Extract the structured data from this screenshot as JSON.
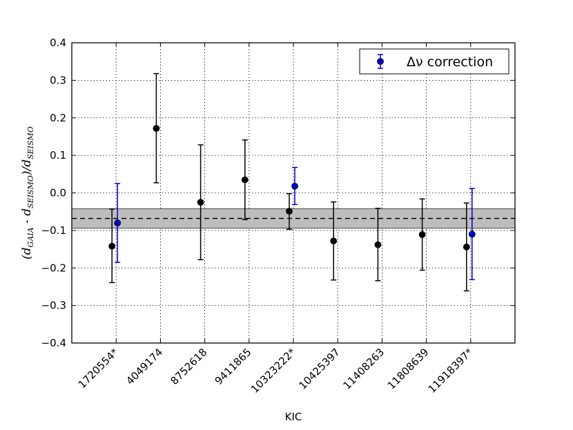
{
  "chart_data": {
    "type": "scatter",
    "xlabel": "KIC",
    "ylabel_parts": {
      "open": "(d",
      "gaia": "GAIA",
      "minus": " - d",
      "seismo1": "SEISMO",
      "mid": ")/d",
      "seismo2": "SEISMO"
    },
    "ylim": [
      -0.4,
      0.4
    ],
    "yticks": [
      "−0.4",
      "−0.3",
      "−0.2",
      "−0.1",
      "0.0",
      "0.1",
      "0.2",
      "0.3",
      "0.4"
    ],
    "ytick_values": [
      -0.4,
      -0.3,
      -0.2,
      -0.1,
      0.0,
      0.1,
      0.2,
      0.3,
      0.4
    ],
    "categories": [
      "1720554*",
      "4049174",
      "8752618",
      "9411865",
      "10323222*",
      "10425397",
      "11408263",
      "11808639",
      "11918397*"
    ],
    "grid": true,
    "reference_line": -0.068,
    "reference_band": [
      -0.094,
      -0.042
    ],
    "series": [
      {
        "color": "#000000",
        "points": [
          {
            "x": "1720554*",
            "y": -0.142,
            "err_lo": -0.239,
            "err_hi": -0.043
          },
          {
            "x": "4049174",
            "y": 0.172,
            "err_lo": 0.027,
            "err_hi": 0.318
          },
          {
            "x": "8752618",
            "y": -0.025,
            "err_lo": -0.178,
            "err_hi": 0.128
          },
          {
            "x": "9411865",
            "y": 0.035,
            "err_lo": -0.071,
            "err_hi": 0.141
          },
          {
            "x": "10323222*",
            "y": -0.049,
            "err_lo": -0.097,
            "err_hi": -0.002
          },
          {
            "x": "10425397",
            "y": -0.128,
            "err_lo": -0.232,
            "err_hi": -0.024
          },
          {
            "x": "11408263",
            "y": -0.138,
            "err_lo": -0.234,
            "err_hi": -0.041
          },
          {
            "x": "11808639",
            "y": -0.111,
            "err_lo": -0.206,
            "err_hi": -0.016
          },
          {
            "x": "11918397*",
            "y": -0.144,
            "err_lo": -0.261,
            "err_hi": -0.027
          }
        ]
      },
      {
        "name": "Δν correction",
        "color": "#0000cc",
        "points": [
          {
            "x": "1720554*",
            "y": -0.08,
            "err_lo": -0.185,
            "err_hi": 0.025
          },
          {
            "x": "10323222*",
            "y": 0.018,
            "err_lo": -0.031,
            "err_hi": 0.068
          },
          {
            "x": "11918397*",
            "y": -0.11,
            "err_lo": -0.231,
            "err_hi": 0.012
          }
        ]
      }
    ],
    "legend": {
      "label": "Δν correction",
      "position": "top-right"
    }
  }
}
